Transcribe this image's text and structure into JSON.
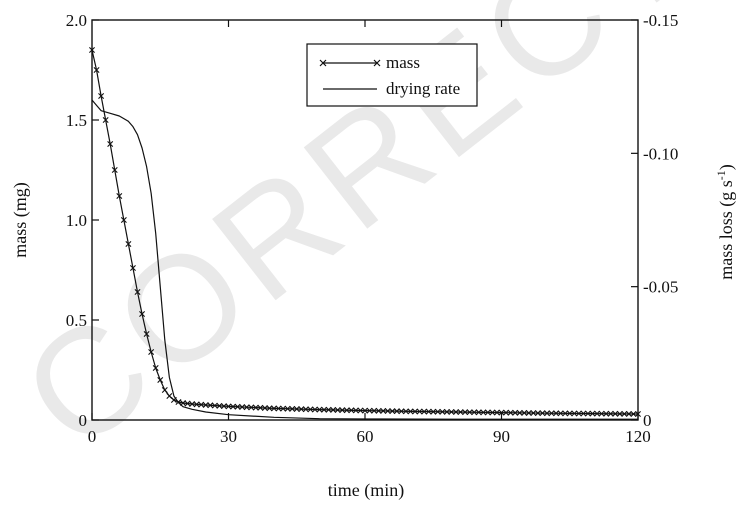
{
  "watermark": "CORRECTED",
  "chart_data": {
    "type": "line",
    "xlabel": "time (min)",
    "ylabel_left": "mass (mg)",
    "ylabel_right_main": "mass loss (g s",
    "ylabel_right_sup": "-1",
    "ylabel_right_close": ")",
    "xlim": [
      0,
      120
    ],
    "ylim_left": [
      0,
      2.0
    ],
    "ylim_right": [
      0,
      -0.15
    ],
    "xticks": [
      0,
      30,
      60,
      90,
      120
    ],
    "xtick_labels": [
      "0",
      "30",
      "60",
      "90",
      "120"
    ],
    "yticks_left": [
      0,
      0.5,
      1.0,
      1.5,
      2.0
    ],
    "ytick_labels_left": [
      "0",
      "0.5",
      "1.0",
      "1.5",
      "2.0"
    ],
    "yticks_right": [
      0,
      -0.05,
      -0.1,
      -0.15
    ],
    "ytick_labels_right": [
      "0",
      "-0.05",
      "-0.10",
      "-0.15"
    ],
    "legend": {
      "position": "top-center",
      "entries": [
        "mass",
        "drying rate"
      ]
    },
    "grid": false,
    "series": [
      {
        "name": "mass",
        "axis": "left",
        "marker": "x",
        "x": [
          0,
          1,
          2,
          3,
          4,
          5,
          6,
          7,
          8,
          9,
          10,
          11,
          12,
          13,
          14,
          15,
          16,
          17,
          18,
          19,
          20,
          22,
          25,
          30,
          40,
          50,
          60,
          70,
          80,
          90,
          100,
          110,
          120
        ],
        "y": [
          1.85,
          1.75,
          1.62,
          1.5,
          1.38,
          1.25,
          1.12,
          1.0,
          0.88,
          0.76,
          0.64,
          0.53,
          0.43,
          0.34,
          0.26,
          0.2,
          0.15,
          0.12,
          0.1,
          0.09,
          0.085,
          0.08,
          0.075,
          0.068,
          0.058,
          0.052,
          0.047,
          0.043,
          0.04,
          0.037,
          0.034,
          0.032,
          0.03
        ]
      },
      {
        "name": "drying rate",
        "axis": "right",
        "marker": "none",
        "x": [
          0,
          1,
          2,
          4,
          6,
          8,
          9,
          10,
          11,
          12,
          13,
          14,
          15,
          16,
          17,
          18,
          19,
          20,
          22,
          25,
          30,
          40,
          50,
          60,
          80,
          100,
          120
        ],
        "y": [
          -0.12,
          -0.118,
          -0.116,
          -0.115,
          -0.114,
          -0.112,
          -0.11,
          -0.107,
          -0.102,
          -0.095,
          -0.085,
          -0.07,
          -0.05,
          -0.03,
          -0.016,
          -0.009,
          -0.0065,
          -0.005,
          -0.004,
          -0.003,
          -0.002,
          -0.001,
          -0.0005,
          -0.0004,
          -0.0003,
          -0.0003,
          -0.0003
        ]
      }
    ]
  }
}
